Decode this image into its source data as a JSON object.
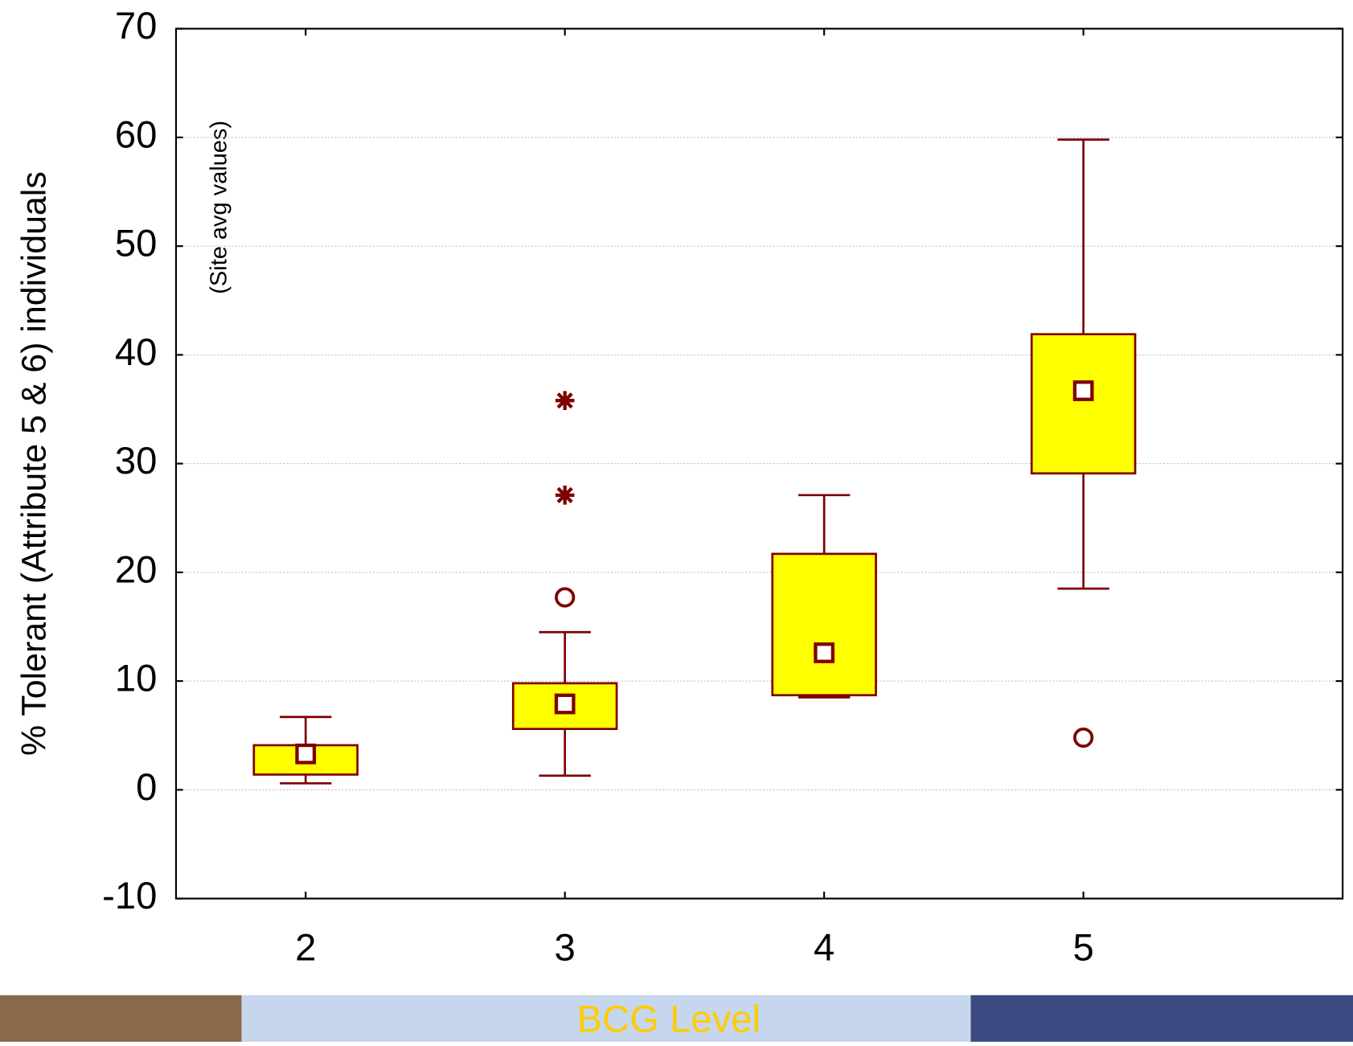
{
  "chart_data": {
    "type": "box",
    "y_label": "% Tolerant (Attribute 5 & 6) individuals",
    "x_label": "BCG Level",
    "annotation": "(Site avg values)",
    "x": [
      2,
      3,
      4,
      5
    ],
    "categories": [
      "2",
      "3",
      "4",
      "5"
    ],
    "xlim": [
      1.5,
      6
    ],
    "ylim": [
      -10,
      70
    ],
    "yticks": [
      -10,
      0,
      10,
      20,
      30,
      40,
      50,
      60,
      70
    ],
    "grid": true,
    "box_color": "#ffff00",
    "line_color": "#7f0000",
    "boxes": [
      {
        "whisker_low": 0.6,
        "q1": 1.4,
        "median": 3.3,
        "q3": 4.1,
        "whisker_high": 6.7,
        "outliers": [],
        "extremes": []
      },
      {
        "whisker_low": 1.3,
        "q1": 5.6,
        "median": 7.9,
        "q3": 9.8,
        "whisker_high": 14.5,
        "outliers": [
          17.7
        ],
        "extremes": [
          27.1,
          35.8
        ]
      },
      {
        "whisker_low": 8.5,
        "q1": 8.7,
        "median": 12.6,
        "q3": 21.7,
        "whisker_high": 27.1,
        "outliers": [],
        "extremes": []
      },
      {
        "whisker_low": 18.5,
        "q1": 29.1,
        "median": 36.7,
        "q3": 41.9,
        "whisker_high": 59.8,
        "outliers": [
          4.8
        ],
        "extremes": []
      }
    ]
  }
}
